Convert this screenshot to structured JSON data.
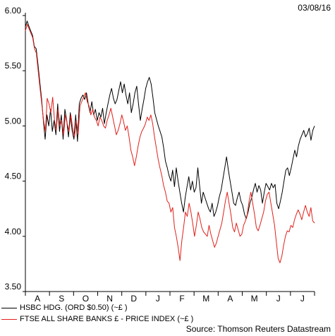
{
  "header": {
    "date": "03/08/16"
  },
  "legend": [
    {
      "label": "HSBC HDG. (ORD $0.50) (~£ )",
      "color": "#000000"
    },
    {
      "label": "FTSE ALL SHARE BANKS £ - PRICE INDEX (~£ )",
      "color": "#e0201b"
    }
  ],
  "source": "Source: Thomson Reuters Datastream",
  "chart_data": {
    "type": "line",
    "y_ticks": [
      "3.50",
      "4.00",
      "4.50",
      "5.00",
      "5.50",
      "6.00"
    ],
    "ylim": [
      3.5,
      6.0
    ],
    "x_ticks": [
      "A",
      "S",
      "O",
      "N",
      "D",
      "J",
      "F",
      "M",
      "A",
      "M",
      "J",
      "J"
    ],
    "grid": false,
    "series": [
      {
        "name": "HSBC HDG. (ORD $0.50) (~£ )",
        "color": "#000000",
        "values": [
          5.9,
          5.95,
          5.9,
          5.86,
          5.82,
          5.72,
          5.7,
          5.56,
          5.4,
          5.25,
          5.05,
          4.88,
          5.1,
          5.0,
          5.15,
          4.95,
          5.05,
          4.92,
          5.2,
          4.95,
          5.1,
          4.88,
          5.15,
          5.05,
          4.9,
          5.12,
          4.96,
          4.88,
          5.1,
          4.86,
          5.2,
          5.25,
          5.28,
          5.24,
          5.3,
          5.2,
          5.12,
          5.22,
          5.1,
          5.15,
          5.05,
          5.12,
          5.08,
          5.16,
          5.02,
          5.12,
          5.2,
          5.28,
          5.34,
          5.25,
          5.2,
          5.24,
          5.32,
          5.4,
          5.3,
          5.38,
          5.28,
          5.2,
          5.3,
          5.12,
          5.2,
          5.3,
          5.36,
          5.2,
          5.05,
          5.15,
          5.24,
          5.34,
          5.4,
          5.44,
          5.38,
          5.26,
          5.12,
          5.06,
          5.0,
          4.95,
          4.9,
          4.8,
          4.68,
          4.62,
          4.55,
          4.5,
          4.6,
          4.45,
          4.62,
          4.5,
          4.4,
          4.3,
          4.22,
          4.35,
          4.45,
          4.54,
          4.42,
          4.5,
          4.4,
          4.44,
          4.62,
          4.46,
          4.3,
          4.4,
          4.35,
          4.3,
          4.25,
          4.22,
          4.3,
          4.18,
          4.22,
          4.28,
          4.36,
          4.42,
          4.52,
          4.62,
          4.72,
          4.6,
          4.5,
          4.4,
          4.3,
          4.28,
          4.35,
          4.4,
          4.32,
          4.28,
          4.2,
          4.16,
          4.22,
          4.3,
          4.35,
          4.42,
          4.48,
          4.4,
          4.46,
          4.42,
          4.3,
          4.4,
          4.48,
          4.45,
          4.42,
          4.48,
          4.44,
          4.47,
          4.3,
          4.25,
          4.32,
          4.4,
          4.5,
          4.6,
          4.62,
          4.55,
          4.62,
          4.7,
          4.78,
          4.72,
          4.82,
          4.88,
          4.92,
          4.96,
          4.9,
          4.93,
          4.98,
          4.87,
          4.96,
          5.0
        ]
      },
      {
        "name": "FTSE ALL SHARE BANKS £ - PRICE INDEX (~£ )",
        "color": "#e0201b",
        "values": [
          5.86,
          5.92,
          5.88,
          5.84,
          5.8,
          5.7,
          5.66,
          5.5,
          5.35,
          5.2,
          5.05,
          4.95,
          5.25,
          5.2,
          5.12,
          5.26,
          5.05,
          4.96,
          5.15,
          5.0,
          5.05,
          4.92,
          5.1,
          5.02,
          4.95,
          5.1,
          4.98,
          4.9,
          5.05,
          4.92,
          5.18,
          5.22,
          5.26,
          5.3,
          5.22,
          5.18,
          5.1,
          5.15,
          5.08,
          5.05,
          5.0,
          5.08,
          5.05,
          5.0,
          4.98,
          5.05,
          5.1,
          5.16,
          5.08,
          5.0,
          4.92,
          4.96,
          5.02,
          5.1,
          5.04,
          4.96,
          5.0,
          4.9,
          4.78,
          4.72,
          4.64,
          4.72,
          4.82,
          4.9,
          4.95,
          4.98,
          5.02,
          5.08,
          5.05,
          5.1,
          5.02,
          4.9,
          4.8,
          4.7,
          4.62,
          4.55,
          4.46,
          4.4,
          4.32,
          4.3,
          4.22,
          4.26,
          4.08,
          4.0,
          3.9,
          3.78,
          3.96,
          4.08,
          4.22,
          4.18,
          4.3,
          4.22,
          4.12,
          4.0,
          4.1,
          4.22,
          4.16,
          4.08,
          4.04,
          4.02,
          4.0,
          4.1,
          4.02,
          3.96,
          3.9,
          3.94,
          4.0,
          4.06,
          4.12,
          4.22,
          4.32,
          4.4,
          4.3,
          4.2,
          4.08,
          4.04,
          4.12,
          4.06,
          4.0,
          4.02,
          4.1,
          4.14,
          4.2,
          4.32,
          4.4,
          4.3,
          4.2,
          4.08,
          4.05,
          4.1,
          4.16,
          4.22,
          4.32,
          4.38,
          4.4,
          4.3,
          4.2,
          4.1,
          3.95,
          3.8,
          3.76,
          3.82,
          3.92,
          4.0,
          4.05,
          4.04,
          4.1,
          4.08,
          4.15,
          4.2,
          4.24,
          4.2,
          4.15,
          4.22,
          4.28,
          4.22,
          4.18,
          4.26,
          4.14,
          4.12
        ]
      }
    ]
  }
}
